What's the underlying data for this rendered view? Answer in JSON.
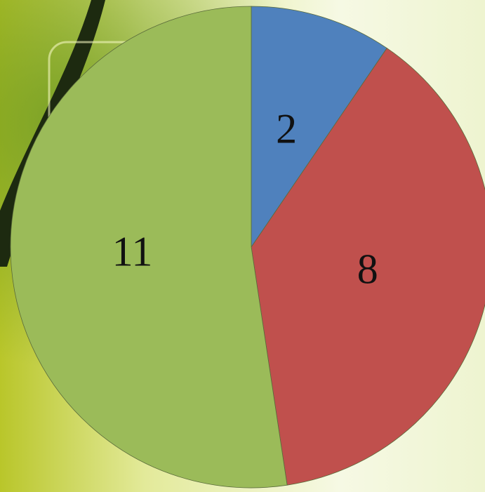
{
  "chart_data": {
    "type": "pie",
    "values": [
      2,
      8,
      11
    ],
    "colors": [
      "#4f81bd",
      "#c0504d",
      "#9bbb59"
    ],
    "start_angle": 0,
    "direction": "clockwise"
  }
}
